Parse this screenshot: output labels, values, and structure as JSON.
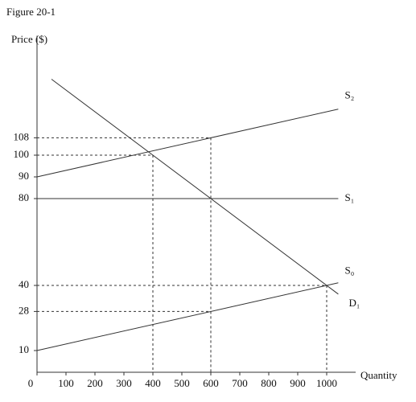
{
  "chart_data": {
    "type": "line",
    "title": "Figure 20-1",
    "y_label": "Price ($)",
    "x_label": "Quantity",
    "xlim": [
      0,
      1100
    ],
    "ylim": [
      0,
      155
    ],
    "xticks": [
      0,
      100,
      200,
      300,
      400,
      500,
      600,
      700,
      800,
      900,
      1000
    ],
    "yticks": [
      10,
      28,
      40,
      80,
      90,
      100,
      108
    ],
    "color": "#333333",
    "series": [
      {
        "name": "S₂",
        "x": [
          0,
          1040
        ],
        "values": [
          90,
          121.2
        ]
      },
      {
        "name": "S₁",
        "x": [
          0,
          1040
        ],
        "values": [
          80,
          80
        ]
      },
      {
        "name": "S₀",
        "x": [
          0,
          1040
        ],
        "values": [
          10,
          41.2
        ]
      },
      {
        "name": "D₁",
        "x": [
          50,
          1040
        ],
        "values": [
          135,
          36
        ]
      }
    ],
    "guides": [
      {
        "x": 400,
        "y": 100
      },
      {
        "x": 600,
        "y": 108
      },
      {
        "x": 600,
        "y": 28
      },
      {
        "x": 1000,
        "y": 40
      }
    ]
  }
}
